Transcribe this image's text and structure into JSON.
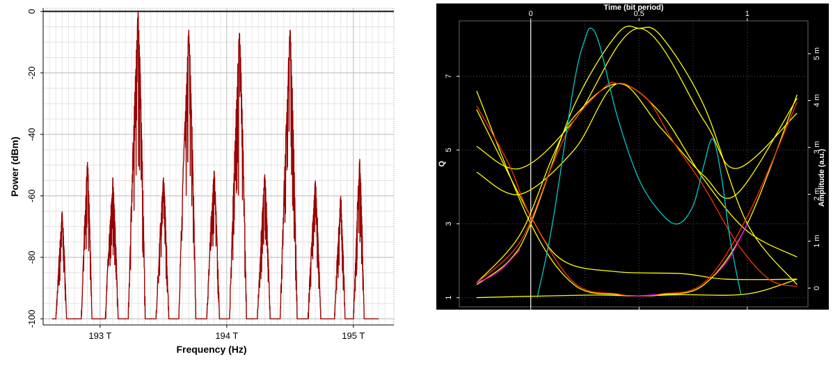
{
  "chart_data": [
    {
      "type": "line",
      "title": "",
      "xlabel": "Frequency (Hz)",
      "ylabel": "Power (dBm)",
      "xlim": [
        192.55,
        195.32
      ],
      "ylim": [
        -102,
        1
      ],
      "xticks": [
        193,
        194,
        195
      ],
      "xtick_labels": [
        "193 T",
        "194 T",
        "195 T"
      ],
      "yticks": [
        0,
        -20,
        -40,
        -60,
        -80,
        -100
      ],
      "ytick_labels": [
        "0",
        "-20",
        "-40",
        "-60",
        "-80",
        "-100"
      ],
      "grid": true,
      "line_color": "#990000",
      "baseline": -100,
      "peaks": [
        {
          "x": 192.7,
          "y": -65,
          "width": 0.05
        },
        {
          "x": 192.9,
          "y": -49,
          "width": 0.05
        },
        {
          "x": 193.1,
          "y": -54,
          "width": 0.06
        },
        {
          "x": 193.3,
          "y": 0,
          "width": 0.08
        },
        {
          "x": 193.5,
          "y": -54,
          "width": 0.06
        },
        {
          "x": 193.7,
          "y": -6,
          "width": 0.08
        },
        {
          "x": 193.9,
          "y": -52,
          "width": 0.06
        },
        {
          "x": 194.1,
          "y": -7,
          "width": 0.08
        },
        {
          "x": 194.3,
          "y": -53,
          "width": 0.06
        },
        {
          "x": 194.5,
          "y": -6,
          "width": 0.08
        },
        {
          "x": 194.7,
          "y": -55,
          "width": 0.06
        },
        {
          "x": 194.9,
          "y": -60,
          "width": 0.05
        },
        {
          "x": 195.05,
          "y": -48,
          "width": 0.05
        }
      ],
      "x_data_range": [
        192.62,
        195.2
      ]
    },
    {
      "type": "line",
      "title": "",
      "xlabel": "Time (bit period)",
      "x2label": "Time (bit period)",
      "ylabel": "Q",
      "y2label": "Amplitude (a.u.)",
      "xlim": [
        -0.33,
        1.28
      ],
      "ylim": [
        0.75,
        8.5
      ],
      "y2lim": [
        -0.0004,
        0.0057
      ],
      "xticks": [
        0,
        0.5,
        1
      ],
      "xtick_labels": [
        "0",
        "0.5",
        "1"
      ],
      "yticks": [
        1,
        3,
        5,
        7
      ],
      "ytick_labels": [
        "1",
        "3",
        "5",
        "7"
      ],
      "y2ticks": [
        0,
        0.001,
        0.002,
        0.003,
        0.004,
        0.005
      ],
      "y2tick_labels": [
        "0",
        "1 m",
        "2 m",
        "3 m",
        "4 m",
        "5 m"
      ],
      "background": "#000000",
      "grid": true,
      "series": [
        {
          "color": "#ffff00",
          "x": [
            -0.25,
            0.0,
            0.2,
            0.4,
            0.5,
            0.6,
            0.8,
            1.0,
            1.23
          ],
          "y": [
            6.6,
            3.0,
            1.35,
            1.08,
            1.05,
            1.08,
            1.35,
            3.0,
            6.5
          ]
        },
        {
          "color": "#ffff00",
          "x": [
            -0.25,
            -0.1,
            0.0,
            0.2,
            0.4,
            0.5,
            0.6,
            0.8,
            1.0,
            1.23
          ],
          "y": [
            1.35,
            2.0,
            3.0,
            6.2,
            8.15,
            8.3,
            8.1,
            6.2,
            3.0,
            1.35
          ]
        },
        {
          "color": "#ffff00",
          "x": [
            -0.25,
            -0.05,
            0.2,
            0.5,
            0.8,
            0.95,
            1.23
          ],
          "y": [
            5.1,
            4.5,
            5.8,
            8.3,
            5.8,
            4.5,
            6.0
          ]
        },
        {
          "color": "#ffff00",
          "x": [
            -0.25,
            -0.05,
            0.2,
            0.4,
            0.6,
            0.8,
            0.95,
            1.23
          ],
          "y": [
            4.4,
            3.8,
            5.0,
            6.8,
            5.6,
            4.3,
            3.8,
            6.4
          ]
        },
        {
          "color": "#ffff00",
          "x": [
            -0.25,
            -0.05,
            0.1,
            0.2,
            0.4,
            0.6,
            0.8,
            1.0,
            1.23
          ],
          "y": [
            1.4,
            2.7,
            4.8,
            5.9,
            6.8,
            6.0,
            4.2,
            2.8,
            2.1
          ]
        },
        {
          "color": "#ffff00",
          "x": [
            -0.25,
            0.0,
            0.15,
            0.4,
            0.7,
            0.9,
            1.23
          ],
          "y": [
            6.1,
            3.2,
            2.0,
            1.7,
            1.65,
            1.5,
            1.5
          ]
        },
        {
          "color": "#ffff00",
          "x": [
            -0.25,
            0.1,
            0.3,
            0.5,
            0.7,
            1.0,
            1.23
          ],
          "y": [
            1.0,
            1.05,
            1.07,
            1.05,
            1.08,
            1.1,
            1.5
          ]
        },
        {
          "color": "#ff3300",
          "x": [
            -0.25,
            -0.05,
            0.1,
            0.2,
            0.35,
            0.4,
            0.45,
            0.55,
            0.65,
            0.8,
            0.95,
            1.1,
            1.23
          ],
          "y": [
            1.4,
            2.5,
            4.6,
            5.8,
            6.75,
            6.8,
            6.75,
            6.3,
            5.3,
            4.0,
            2.5,
            1.5,
            1.3
          ]
        },
        {
          "color": "#ff3300",
          "x": [
            -0.25,
            -0.1,
            0.0,
            0.2,
            0.4,
            0.5,
            0.6,
            0.8,
            1.0,
            1.23
          ],
          "y": [
            6.2,
            4.6,
            3.2,
            1.4,
            1.1,
            1.05,
            1.1,
            1.4,
            3.2,
            6.3
          ]
        },
        {
          "color": "#00cccc",
          "x": [
            0.03,
            0.1,
            0.2,
            0.25,
            0.28,
            0.32,
            0.4,
            0.5,
            0.6,
            0.68,
            0.75,
            0.8,
            0.84,
            0.88,
            0.92,
            0.97
          ],
          "y": [
            1.0,
            3.0,
            6.8,
            8.0,
            8.3,
            7.8,
            5.9,
            4.2,
            3.3,
            3.0,
            3.5,
            4.6,
            5.3,
            4.3,
            2.6,
            1.1
          ]
        },
        {
          "color": "#ff00ff",
          "x": [
            -0.25,
            -0.15,
            -0.05
          ],
          "y": [
            1.4,
            1.7,
            2.3
          ]
        },
        {
          "color": "#ff00ff",
          "x": [
            0.45,
            0.5,
            0.58
          ],
          "y": [
            1.06,
            1.05,
            1.08
          ]
        },
        {
          "color": "#ff00ff",
          "x": [
            0.85,
            0.92,
            1.0
          ],
          "y": [
            1.6,
            2.1,
            3.0
          ]
        }
      ]
    }
  ]
}
